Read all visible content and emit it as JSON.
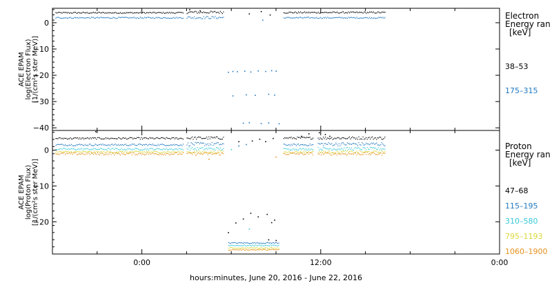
{
  "chart_data": {
    "type": "scatter",
    "xlabel": "hours:minutes, June 20, 2016 - June 22, 2016",
    "x_tick_labels": [
      "0:00",
      "12:00",
      "0:00"
    ],
    "x_ticks_hours": [
      0,
      12,
      24
    ],
    "xlim_hours": [
      -6,
      24
    ],
    "panels": [
      {
        "id": "electron",
        "ylabel": [
          "ACE EPAM",
          "log(Electron Flux)",
          "[1/(cm²s ster MeV)]"
        ],
        "ylim": [
          -41,
          5.5
        ],
        "y_ticks": [
          0,
          -10,
          -20,
          -30,
          -40
        ],
        "y_tick_labels": [
          "0",
          "−10",
          "−20",
          "−30",
          "−40"
        ],
        "legend_title": [
          "Electron",
          "Energy ran",
          "[keV]"
        ],
        "series": [
          {
            "name": "38–53",
            "color": "#000000",
            "segments": [
              {
                "start": -5.8,
                "end": 2.8,
                "y": 3.8,
                "jitter": 0.25
              },
              {
                "start": 3.0,
                "end": 5.5,
                "y": 4.0,
                "jitter": 0.5
              },
              {
                "start": 9.5,
                "end": 16.3,
                "y": 3.9,
                "jitter": 0.3
              }
            ],
            "points": [
              [
                3.2,
                5.0
              ],
              [
                3.9,
                4.6
              ],
              [
                8.0,
                4.3
              ],
              [
                8.6,
                3.0
              ],
              [
                7.2,
                3.4
              ]
            ]
          },
          {
            "name": "175–315",
            "color": "#1f77c0",
            "segments": [
              {
                "start": -5.8,
                "end": 2.8,
                "y": 1.9,
                "jitter": 0.25
              },
              {
                "start": 3.0,
                "end": 5.5,
                "y": 2.0,
                "jitter": 0.5
              },
              {
                "start": 9.5,
                "end": 16.3,
                "y": 1.9,
                "jitter": 0.25
              }
            ],
            "points": [
              [
                5.8,
                -18.8
              ],
              [
                6.1,
                -18.5
              ],
              [
                6.4,
                -18.6
              ],
              [
                6.9,
                -18.4
              ],
              [
                7.3,
                -18.7
              ],
              [
                7.8,
                -18.3
              ],
              [
                8.3,
                -18.5
              ],
              [
                8.7,
                -18.2
              ],
              [
                9.0,
                -18.4
              ],
              [
                6.1,
                -27.8
              ],
              [
                7.0,
                -27.4
              ],
              [
                7.6,
                -27.6
              ],
              [
                8.5,
                -27.2
              ],
              [
                8.9,
                -27.5
              ],
              [
                6.8,
                -38.2
              ],
              [
                7.2,
                -38.0
              ],
              [
                8.0,
                -38.3
              ],
              [
                8.5,
                -38.1
              ],
              [
                9.2,
                -38.4
              ],
              [
                8.1,
                1.0
              ]
            ]
          }
        ]
      },
      {
        "id": "proton",
        "ylabel": [
          "ACE EPAM",
          "log(Proton Flux)",
          "[1/(cm²s ster MeV)]"
        ],
        "ylim": [
          -29,
          5.5
        ],
        "y_ticks": [
          0,
          -10,
          -20
        ],
        "y_tick_labels": [
          "0",
          "−10",
          "−20"
        ],
        "legend_title": [
          "Proton",
          "Energy ran",
          "[keV]"
        ],
        "series": [
          {
            "name": "47–68",
            "color": "#000000",
            "segments": [
              {
                "start": -5.8,
                "end": 2.8,
                "y": 3.3,
                "jitter": 0.25
              },
              {
                "start": 3.0,
                "end": 5.5,
                "y": 3.4,
                "jitter": 0.4
              },
              {
                "start": 9.5,
                "end": 11.5,
                "y": 3.4,
                "jitter": 0.3
              },
              {
                "start": 11.8,
                "end": 16.3,
                "y": 3.4,
                "jitter": 0.4
              }
            ],
            "points": [
              [
                -3.1,
                5.2
              ],
              [
                7.4,
                2.6
              ],
              [
                7.9,
                3.1
              ],
              [
                8.3,
                2.4
              ],
              [
                8.8,
                3.3
              ],
              [
                6.5,
                2.4
              ],
              [
                11.2,
                4.6
              ],
              [
                10.7,
                3.9
              ],
              [
                11.9,
                4.9
              ],
              [
                12.3,
                4.4
              ],
              [
                12.6,
                3.9
              ],
              [
                5.8,
                -23.0
              ],
              [
                6.3,
                -20.3
              ],
              [
                6.8,
                -19.2
              ],
              [
                7.3,
                -17.6
              ],
              [
                7.8,
                -18.6
              ],
              [
                8.4,
                -17.9
              ],
              [
                8.7,
                -20.2
              ],
              [
                8.9,
                -19.5
              ],
              [
                9.0,
                -25.2
              ],
              [
                8.5,
                -25.0
              ]
            ]
          },
          {
            "name": "115–195",
            "color": "#1f77c0",
            "segments": [
              {
                "start": -5.8,
                "end": 2.8,
                "y": 1.5,
                "jitter": 0.25
              },
              {
                "start": 3.0,
                "end": 5.5,
                "y": 1.7,
                "jitter": 0.5
              },
              {
                "start": 9.5,
                "end": 11.5,
                "y": 1.5,
                "jitter": 0.25
              },
              {
                "start": 11.8,
                "end": 16.3,
                "y": 1.7,
                "jitter": 0.5
              },
              {
                "start": 5.8,
                "end": 9.2,
                "y": -25.9,
                "jitter": 0.15
              }
            ],
            "points": [
              [
                6.5,
                1.2
              ],
              [
                7.0,
                1.6
              ]
            ]
          },
          {
            "name": "310–580",
            "color": "#36c8d8",
            "segments": [
              {
                "start": -5.8,
                "end": 2.8,
                "y": 0.3,
                "jitter": 0.25
              },
              {
                "start": 3.0,
                "end": 5.5,
                "y": 0.4,
                "jitter": 0.4
              },
              {
                "start": 9.5,
                "end": 11.5,
                "y": 0.3,
                "jitter": 0.25
              },
              {
                "start": 11.8,
                "end": 16.3,
                "y": 0.4,
                "jitter": 0.4
              },
              {
                "start": 5.8,
                "end": 9.2,
                "y": -26.6,
                "jitter": 0.15
              }
            ],
            "points": [
              [
                6.0,
                0.2
              ],
              [
                7.2,
                -22.0
              ]
            ]
          },
          {
            "name": "795–1193",
            "color": "#d8d838",
            "segments": [
              {
                "start": -5.8,
                "end": 2.8,
                "y": -0.5,
                "jitter": 0.25
              },
              {
                "start": 3.0,
                "end": 5.5,
                "y": -0.5,
                "jitter": 0.35
              },
              {
                "start": 9.5,
                "end": 11.5,
                "y": -0.5,
                "jitter": 0.25
              },
              {
                "start": 11.8,
                "end": 16.3,
                "y": -0.5,
                "jitter": 0.35
              },
              {
                "start": 5.8,
                "end": 9.2,
                "y": -27.3,
                "jitter": 0.15
              }
            ],
            "points": []
          },
          {
            "name": "1060–1900",
            "color": "#e8901c",
            "segments": [
              {
                "start": -5.8,
                "end": 2.8,
                "y": -1.0,
                "jitter": 0.35
              },
              {
                "start": 3.0,
                "end": 5.5,
                "y": -1.0,
                "jitter": 0.4
              },
              {
                "start": 9.5,
                "end": 11.5,
                "y": -1.0,
                "jitter": 0.35
              },
              {
                "start": 11.8,
                "end": 16.3,
                "y": -1.0,
                "jitter": 0.4
              },
              {
                "start": 5.8,
                "end": 9.2,
                "y": -27.8,
                "jitter": 0.15
              }
            ],
            "points": [
              [
                4.5,
                -2.5
              ],
              [
                9.0,
                -1.9
              ]
            ]
          }
        ]
      }
    ]
  }
}
